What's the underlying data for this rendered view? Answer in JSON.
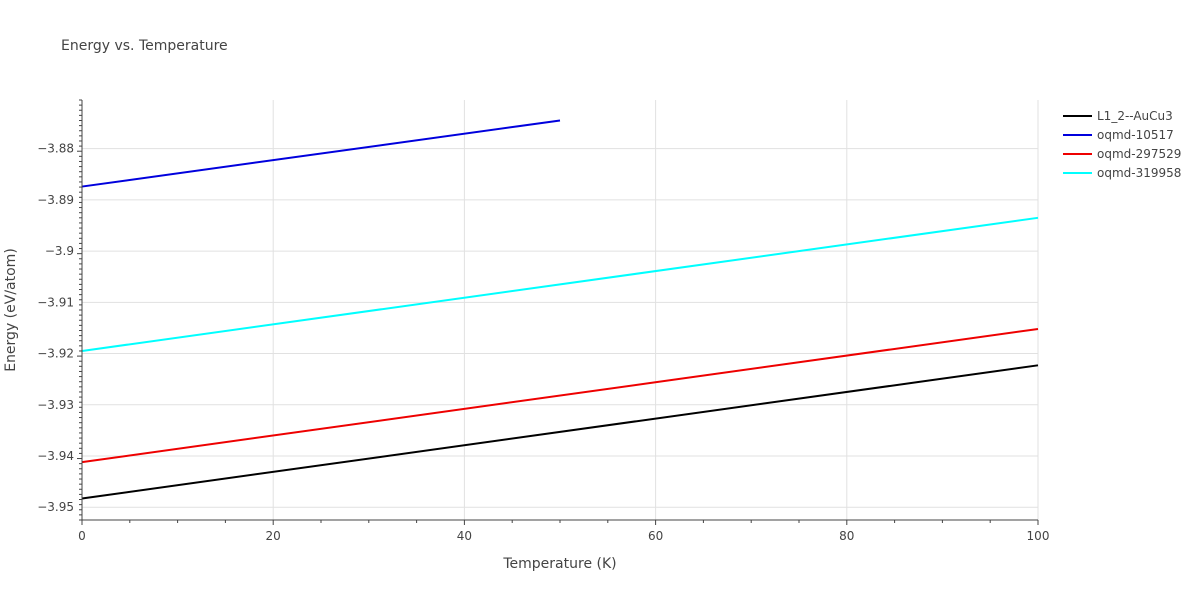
{
  "chart_data": {
    "type": "line",
    "title": "Energy vs. Temperature",
    "xlabel": "Temperature (K)",
    "ylabel": "Energy (eV/atom)",
    "xlim": [
      0,
      100
    ],
    "ylim": [
      -3.9525,
      -3.8705
    ],
    "x_ticks": [
      "0",
      "20",
      "40",
      "60",
      "80",
      "100"
    ],
    "y_ticks": [
      "−3.95",
      "−3.94",
      "−3.93",
      "−3.92",
      "−3.91",
      "−3.9",
      "−3.89",
      "−3.88"
    ],
    "x_tick_values": [
      0,
      20,
      40,
      60,
      80,
      100
    ],
    "y_tick_values": [
      -3.95,
      -3.94,
      -3.93,
      -3.92,
      -3.91,
      -3.9,
      -3.89,
      -3.88
    ],
    "grid": true,
    "legend_position": "top-right",
    "series": [
      {
        "name": "L1_2--AuCu3",
        "color": "#000000",
        "x": [
          0,
          100
        ],
        "y": [
          -3.9483,
          -3.9223
        ]
      },
      {
        "name": "oqmd-10517",
        "color": "#0000dd",
        "x": [
          0,
          50
        ],
        "y": [
          -3.8874,
          -3.8745
        ]
      },
      {
        "name": "oqmd-297529",
        "color": "#ee0000",
        "x": [
          0,
          100
        ],
        "y": [
          -3.9412,
          -3.9152
        ]
      },
      {
        "name": "oqmd-319958",
        "color": "#00ffff",
        "x": [
          0,
          100
        ],
        "y": [
          -3.9195,
          -3.8935
        ]
      }
    ]
  }
}
